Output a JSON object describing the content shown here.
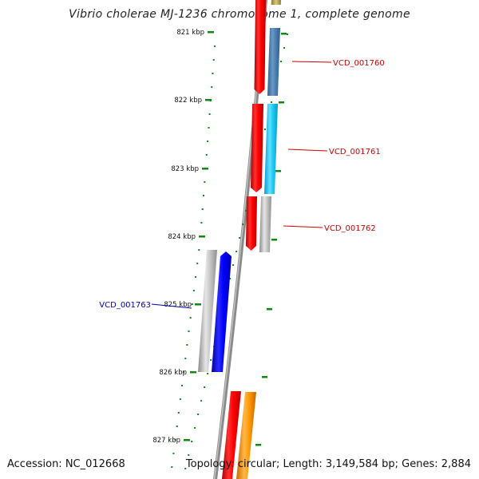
{
  "title": "Vibrio cholerae MJ-1236 chromosome 1, complete genome",
  "accession_text": "Accession: NC_012668",
  "summary_text": "Topology: circular; Length: 3,149,584 bp; Genes: 2,884",
  "axis": {
    "ticks": [
      "821 kbp",
      "822 kbp",
      "823 kbp",
      "824 kbp",
      "825 kbp",
      "826 kbp",
      "827 kbp"
    ]
  },
  "genes": [
    {
      "label": "VCD_001760",
      "strand": "forward",
      "cds_color": "#ff0000",
      "gene_color": "#4a7fb0",
      "label_color": "#cc0000"
    },
    {
      "label": "VCD_001761",
      "strand": "forward",
      "cds_color": "#ff0000",
      "gene_color": "#1ec8f5",
      "label_color": "#cc0000"
    },
    {
      "label": "VCD_001762",
      "strand": "forward",
      "cds_color": "#ff0000",
      "gene_color": "#b9b9b9",
      "label_color": "#cc0000"
    },
    {
      "label": "VCD_001763",
      "strand": "reverse",
      "cds_color": "#0000ff",
      "gene_color": "#c4c4c4",
      "label_color": "#0000aa"
    }
  ],
  "partial_features": [
    {
      "color": "#ff0000"
    },
    {
      "color": "#ff9900"
    },
    {
      "color": "#c0b060"
    }
  ],
  "colors": {
    "backbone": "#888888",
    "tick": "#118811"
  }
}
